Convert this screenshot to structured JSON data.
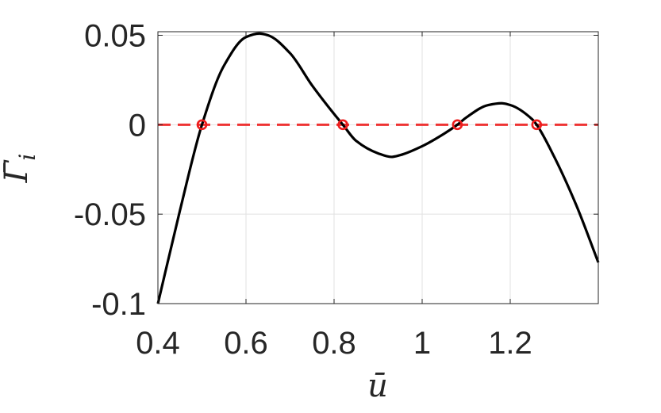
{
  "chart_data": {
    "type": "line",
    "xlabel": "ū",
    "ylabel": "Γ̄",
    "ylabel_subscript": "i",
    "xlim": [
      0.4,
      1.4
    ],
    "ylim": [
      -0.1,
      0.052
    ],
    "xticks": [
      0.4,
      0.6,
      0.8,
      1,
      1.2
    ],
    "xtick_labels": [
      "0.4",
      "0.6",
      "0.8",
      "1",
      "1.2"
    ],
    "yticks": [
      -0.1,
      -0.05,
      0,
      0.05
    ],
    "ytick_labels": [
      "-0.1",
      "-0.05",
      "0",
      "0.05"
    ],
    "grid": true,
    "series": [
      {
        "color": "#000000",
        "style": "solid",
        "x": [
          0.4,
          0.45,
          0.5,
          0.55,
          0.6,
          0.63,
          0.65,
          0.7,
          0.75,
          0.8,
          0.82,
          0.85,
          0.9,
          0.93,
          0.95,
          1.0,
          1.05,
          1.08,
          1.1,
          1.15,
          1.18,
          1.2,
          1.25,
          1.26,
          1.3,
          1.35,
          1.4
        ],
        "y": [
          -0.1,
          -0.048,
          0.0,
          0.033,
          0.049,
          0.051,
          0.05,
          0.04,
          0.022,
          0.006,
          0.0,
          -0.009,
          -0.016,
          -0.018,
          -0.017,
          -0.012,
          -0.005,
          0.0,
          0.004,
          0.011,
          0.012,
          0.011,
          0.003,
          0.0,
          -0.018,
          -0.045,
          -0.077
        ]
      },
      {
        "color": "#ee3333",
        "style": "dashed",
        "x": [
          0.4,
          1.4
        ],
        "y": [
          0,
          0
        ]
      }
    ],
    "markers": {
      "color": "#ee1c1c",
      "shape": "circle",
      "x": [
        0.5,
        0.82,
        1.08,
        1.26
      ],
      "y": [
        0,
        0,
        0,
        0
      ]
    }
  }
}
